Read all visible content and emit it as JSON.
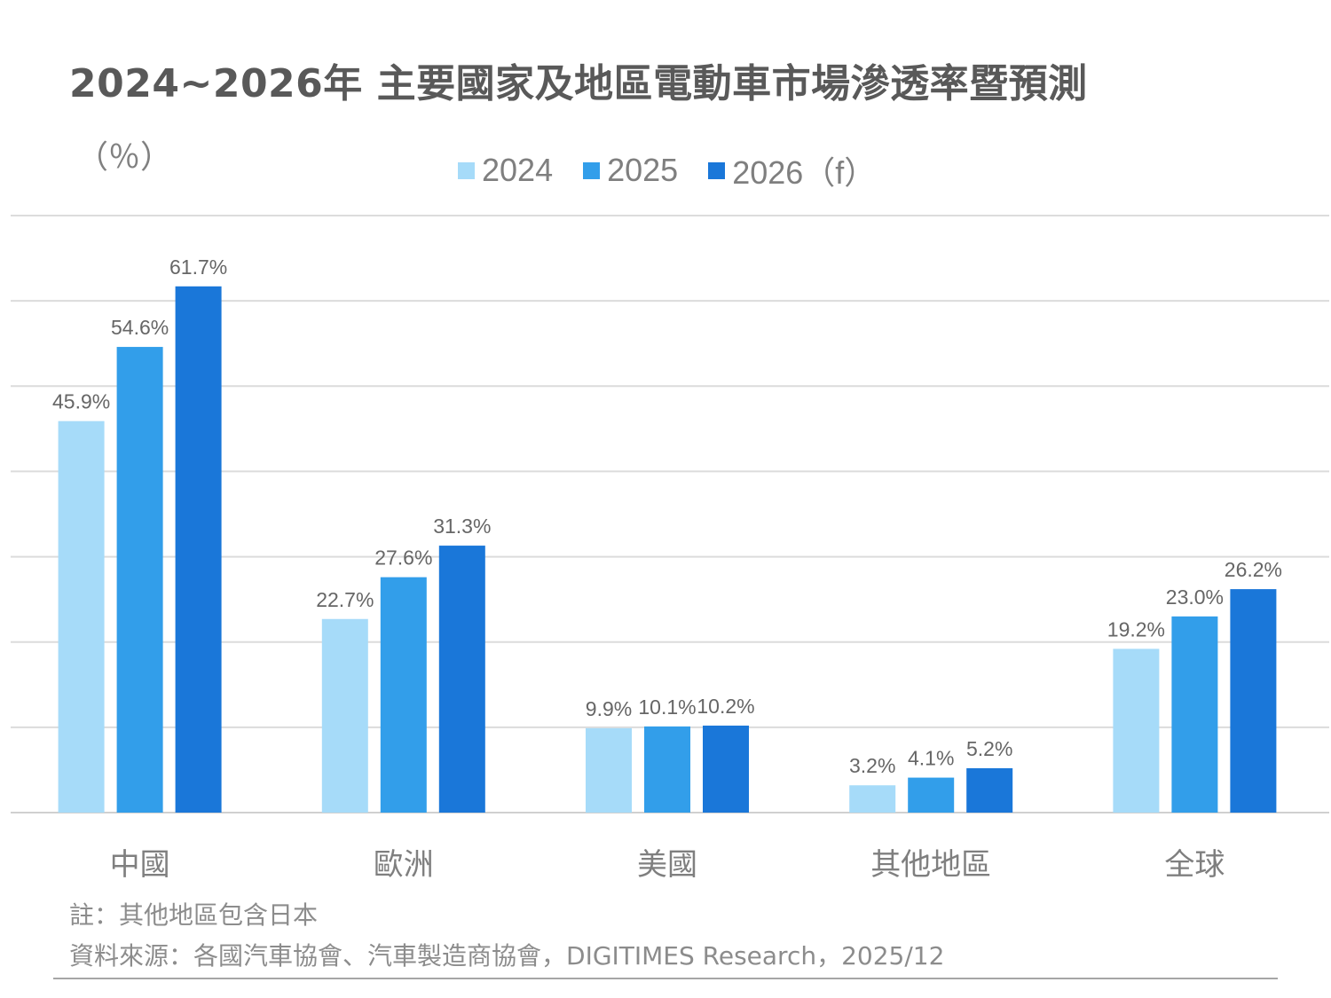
{
  "title": "2024~2026年 主要國家及地區電動車市場滲透率暨預測",
  "unit_label": "（％）",
  "legend": [
    {
      "label": "2024",
      "color": "#A6DBF9"
    },
    {
      "label": "2025",
      "color": "#329EEA"
    },
    {
      "label": "2026（f）",
      "color": "#1A77D9"
    }
  ],
  "notes": {
    "note": "註：其他地區包含日本",
    "source": "資料來源：各國汽車協會、汽車製造商協會，DIGITIMES Research，2025/12"
  },
  "chart_data": {
    "type": "bar",
    "title": "2024~2026年 主要國家及地區電動車市場滲透率暨預測",
    "xlabel": "",
    "ylabel": "（％）",
    "ylim": [
      0,
      70
    ],
    "grid": true,
    "legend_position": "top-center",
    "categories": [
      "中國",
      "歐洲",
      "美國",
      "其他地區",
      "全球"
    ],
    "series": [
      {
        "name": "2024",
        "color": "#A6DBF9",
        "values": [
          45.9,
          22.7,
          9.9,
          3.2,
          19.2
        ],
        "labels": [
          "45.9%",
          "22.7%",
          "9.9%",
          "3.2%",
          "19.2%"
        ]
      },
      {
        "name": "2025",
        "color": "#329EEA",
        "values": [
          54.6,
          27.6,
          10.1,
          4.1,
          23.0
        ],
        "labels": [
          "54.6%",
          "27.6%",
          "10.1%",
          "4.1%",
          "23.0%"
        ]
      },
      {
        "name": "2026（f）",
        "color": "#1A77D9",
        "values": [
          61.7,
          31.3,
          10.2,
          5.2,
          26.2
        ],
        "labels": [
          "61.7%",
          "31.3%",
          "10.2%",
          "5.2%",
          "26.2%"
        ]
      }
    ],
    "gridline_values": [
      0,
      10,
      20,
      30,
      40,
      50,
      60,
      70
    ]
  }
}
